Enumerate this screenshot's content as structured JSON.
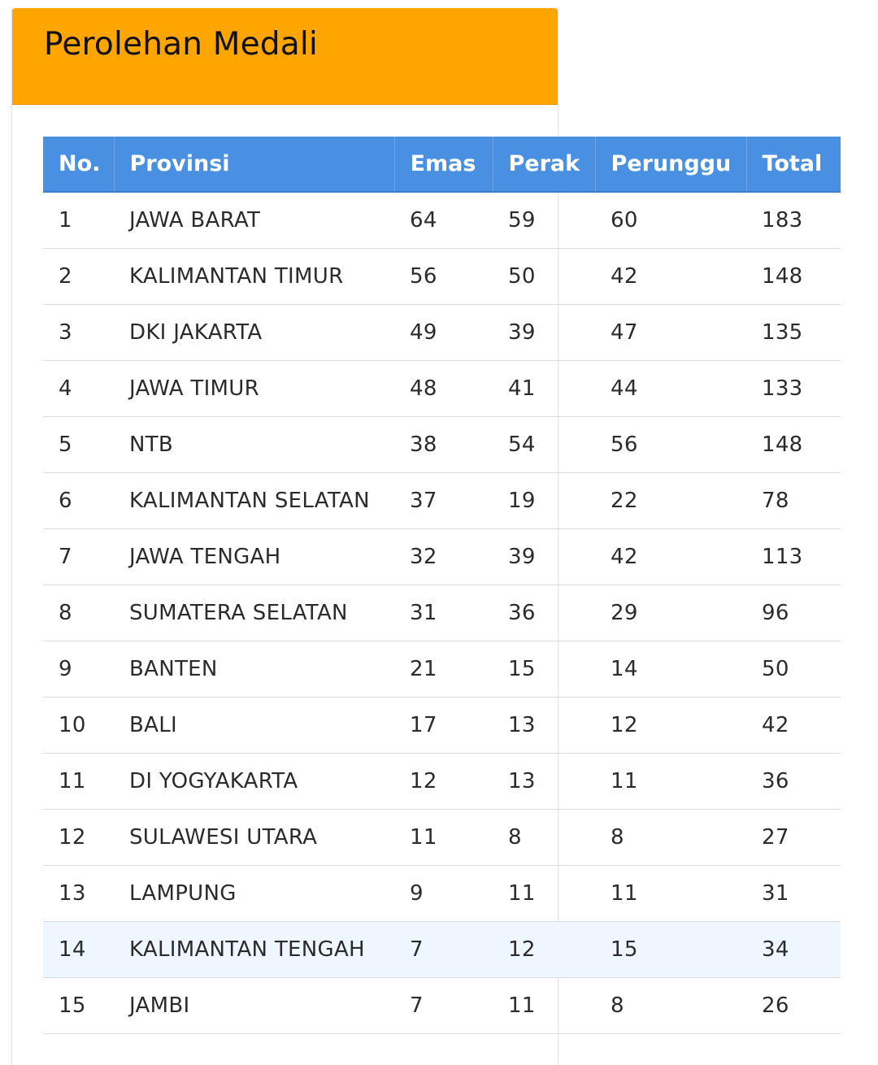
{
  "header": {
    "title": "Perolehan Medali"
  },
  "table": {
    "columns": [
      "No.",
      "Provinsi",
      "Emas",
      "Perak",
      "Perunggu",
      "Total"
    ],
    "rows": [
      [
        "1",
        "JAWA BARAT",
        "64",
        "59",
        "60",
        "183"
      ],
      [
        "2",
        "KALIMANTAN TIMUR",
        "56",
        "50",
        "42",
        "148"
      ],
      [
        "3",
        "DKI JAKARTA",
        "49",
        "39",
        "47",
        "135"
      ],
      [
        "4",
        "JAWA TIMUR",
        "48",
        "41",
        "44",
        "133"
      ],
      [
        "5",
        "NTB",
        "38",
        "54",
        "56",
        "148"
      ],
      [
        "6",
        "KALIMANTAN SELATAN",
        "37",
        "19",
        "22",
        "78"
      ],
      [
        "7",
        "JAWA TENGAH",
        "32",
        "39",
        "42",
        "113"
      ],
      [
        "8",
        "SUMATERA SELATAN",
        "31",
        "36",
        "29",
        "96"
      ],
      [
        "9",
        "BANTEN",
        "21",
        "15",
        "14",
        "50"
      ],
      [
        "10",
        "BALI",
        "17",
        "13",
        "12",
        "42"
      ],
      [
        "11",
        "DI YOGYAKARTA",
        "12",
        "13",
        "11",
        "36"
      ],
      [
        "12",
        "SULAWESI UTARA",
        "11",
        "8",
        "8",
        "27"
      ],
      [
        "13",
        "LAMPUNG",
        "9",
        "11",
        "11",
        "31"
      ],
      [
        "14",
        "KALIMANTAN TENGAH",
        "7",
        "12",
        "15",
        "34"
      ],
      [
        "15",
        "JAMBI",
        "7",
        "11",
        "8",
        "26"
      ]
    ],
    "highlighted_row": 14
  },
  "colors": {
    "header_bg": "#ffa500",
    "table_header_bg": "#4a90e2",
    "highlight_row_bg": "#eef6ff"
  }
}
